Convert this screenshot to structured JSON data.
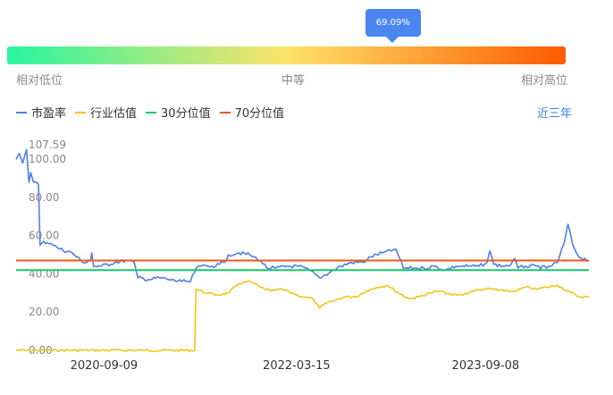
{
  "gauge": {
    "value_label": "69.09%",
    "value_fraction": 0.6909,
    "low_label": "相对低位",
    "mid_label": "中等",
    "high_label": "相对高位",
    "colors": [
      "#28f5a0",
      "#ffe36a",
      "#ff5a00"
    ]
  },
  "period_button": "近三年",
  "chart_data": {
    "type": "line",
    "ylim": [
      0,
      107.59
    ],
    "y_ticks": [
      "0.00",
      "20.00",
      "40.00",
      "60.00",
      "80.00",
      "100.00",
      "107.59"
    ],
    "x_ticks": [
      "2020-09-09",
      "2022-03-15",
      "2023-09-08"
    ],
    "legend_position": "top-left",
    "series": [
      {
        "name": "市盈率",
        "color": "#4e7ee8",
        "points": [
          [
            "2020-01-01",
            100
          ],
          [
            "2020-01-10",
            103
          ],
          [
            "2020-01-20",
            98
          ],
          [
            "2020-01-31",
            105
          ],
          [
            "2020-02-07",
            88
          ],
          [
            "2020-02-12",
            93
          ],
          [
            "2020-02-20",
            88
          ],
          [
            "2020-03-05",
            87
          ],
          [
            "2020-03-10",
            55
          ],
          [
            "2020-03-20",
            57
          ],
          [
            "2020-04-10",
            56
          ],
          [
            "2020-05-05",
            53
          ],
          [
            "2020-06-10",
            51
          ],
          [
            "2020-07-10",
            46
          ],
          [
            "2020-08-01",
            47
          ],
          [
            "2020-08-05",
            51
          ],
          [
            "2020-08-10",
            44
          ],
          [
            "2020-09-01",
            44
          ],
          [
            "2020-10-10",
            46
          ],
          [
            "2020-11-10",
            47
          ],
          [
            "2020-12-05",
            46
          ],
          [
            "2020-12-15",
            38
          ],
          [
            "2021-01-15",
            37
          ],
          [
            "2021-02-15",
            38
          ],
          [
            "2021-03-15",
            37
          ],
          [
            "2021-04-20",
            36
          ],
          [
            "2021-05-15",
            36
          ],
          [
            "2021-05-31",
            43
          ],
          [
            "2021-06-15",
            44
          ],
          [
            "2021-07-15",
            44
          ],
          [
            "2021-08-05",
            45
          ],
          [
            "2021-08-20",
            46
          ],
          [
            "2021-09-01",
            50
          ],
          [
            "2021-10-01",
            51
          ],
          [
            "2021-11-01",
            50
          ],
          [
            "2021-12-01",
            47
          ],
          [
            "2021-12-20",
            43
          ],
          [
            "2022-01-15",
            43
          ],
          [
            "2022-02-15",
            44
          ],
          [
            "2022-03-20",
            44
          ],
          [
            "2022-04-20",
            42
          ],
          [
            "2022-05-20",
            38
          ],
          [
            "2022-06-20",
            41
          ],
          [
            "2022-07-20",
            44
          ],
          [
            "2022-08-20",
            46
          ],
          [
            "2022-09-20",
            46
          ],
          [
            "2022-10-15",
            49
          ],
          [
            "2022-11-15",
            51
          ],
          [
            "2022-12-10",
            52
          ],
          [
            "2022-12-25",
            53
          ],
          [
            "2023-01-15",
            43
          ],
          [
            "2023-02-15",
            43
          ],
          [
            "2023-03-15",
            43
          ],
          [
            "2023-04-15",
            44
          ],
          [
            "2023-05-15",
            42
          ],
          [
            "2023-06-15",
            44
          ],
          [
            "2023-07-20",
            44
          ],
          [
            "2023-08-20",
            44
          ],
          [
            "2023-09-12",
            46
          ],
          [
            "2023-09-20",
            52
          ],
          [
            "2023-10-01",
            45
          ],
          [
            "2023-11-01",
            44
          ],
          [
            "2023-11-20",
            45
          ],
          [
            "2023-12-01",
            48
          ],
          [
            "2023-12-10",
            43
          ],
          [
            "2024-01-01",
            44
          ],
          [
            "2024-02-01",
            44
          ],
          [
            "2024-03-01",
            43
          ],
          [
            "2024-04-01",
            46
          ],
          [
            "2024-04-20",
            56
          ],
          [
            "2024-05-01",
            66
          ],
          [
            "2024-05-15",
            55
          ],
          [
            "2024-06-01",
            49
          ],
          [
            "2024-06-30",
            47
          ]
        ]
      },
      {
        "name": "行业估值",
        "color": "#f4c418",
        "points": [
          [
            "2020-01-01",
            0
          ],
          [
            "2021-05-27",
            0
          ],
          [
            "2021-05-31",
            32
          ],
          [
            "2021-07-01",
            30
          ],
          [
            "2021-08-01",
            29
          ],
          [
            "2021-09-01",
            30
          ],
          [
            "2021-10-01",
            35
          ],
          [
            "2021-11-01",
            36
          ],
          [
            "2021-12-01",
            33
          ],
          [
            "2022-01-01",
            31
          ],
          [
            "2022-02-01",
            32
          ],
          [
            "2022-03-01",
            30
          ],
          [
            "2022-04-01",
            28
          ],
          [
            "2022-05-01",
            27
          ],
          [
            "2022-05-20",
            22
          ],
          [
            "2022-06-01",
            24
          ],
          [
            "2022-07-01",
            26
          ],
          [
            "2022-08-01",
            28
          ],
          [
            "2022-09-01",
            28
          ],
          [
            "2022-10-01",
            31
          ],
          [
            "2022-11-01",
            33
          ],
          [
            "2022-12-01",
            34
          ],
          [
            "2023-01-01",
            30
          ],
          [
            "2023-02-01",
            27
          ],
          [
            "2023-03-01",
            28
          ],
          [
            "2023-04-01",
            30
          ],
          [
            "2023-05-01",
            31
          ],
          [
            "2023-06-01",
            29
          ],
          [
            "2023-07-01",
            29
          ],
          [
            "2023-08-01",
            31
          ],
          [
            "2023-09-01",
            32
          ],
          [
            "2023-10-01",
            32
          ],
          [
            "2023-11-01",
            31
          ],
          [
            "2023-12-01",
            31
          ],
          [
            "2024-01-01",
            33
          ],
          [
            "2024-02-01",
            32
          ],
          [
            "2024-03-01",
            33
          ],
          [
            "2024-04-01",
            34
          ],
          [
            "2024-05-01",
            31
          ],
          [
            "2024-06-01",
            28
          ],
          [
            "2024-06-30",
            28
          ]
        ]
      },
      {
        "name": "30分位值",
        "color": "#12c86e",
        "points": [
          [
            "2020-01-01",
            42
          ],
          [
            "2024-06-30",
            42
          ]
        ]
      },
      {
        "name": "70分位值",
        "color": "#e8591e",
        "points": [
          [
            "2020-01-01",
            47
          ],
          [
            "2024-06-30",
            47
          ]
        ]
      }
    ]
  }
}
